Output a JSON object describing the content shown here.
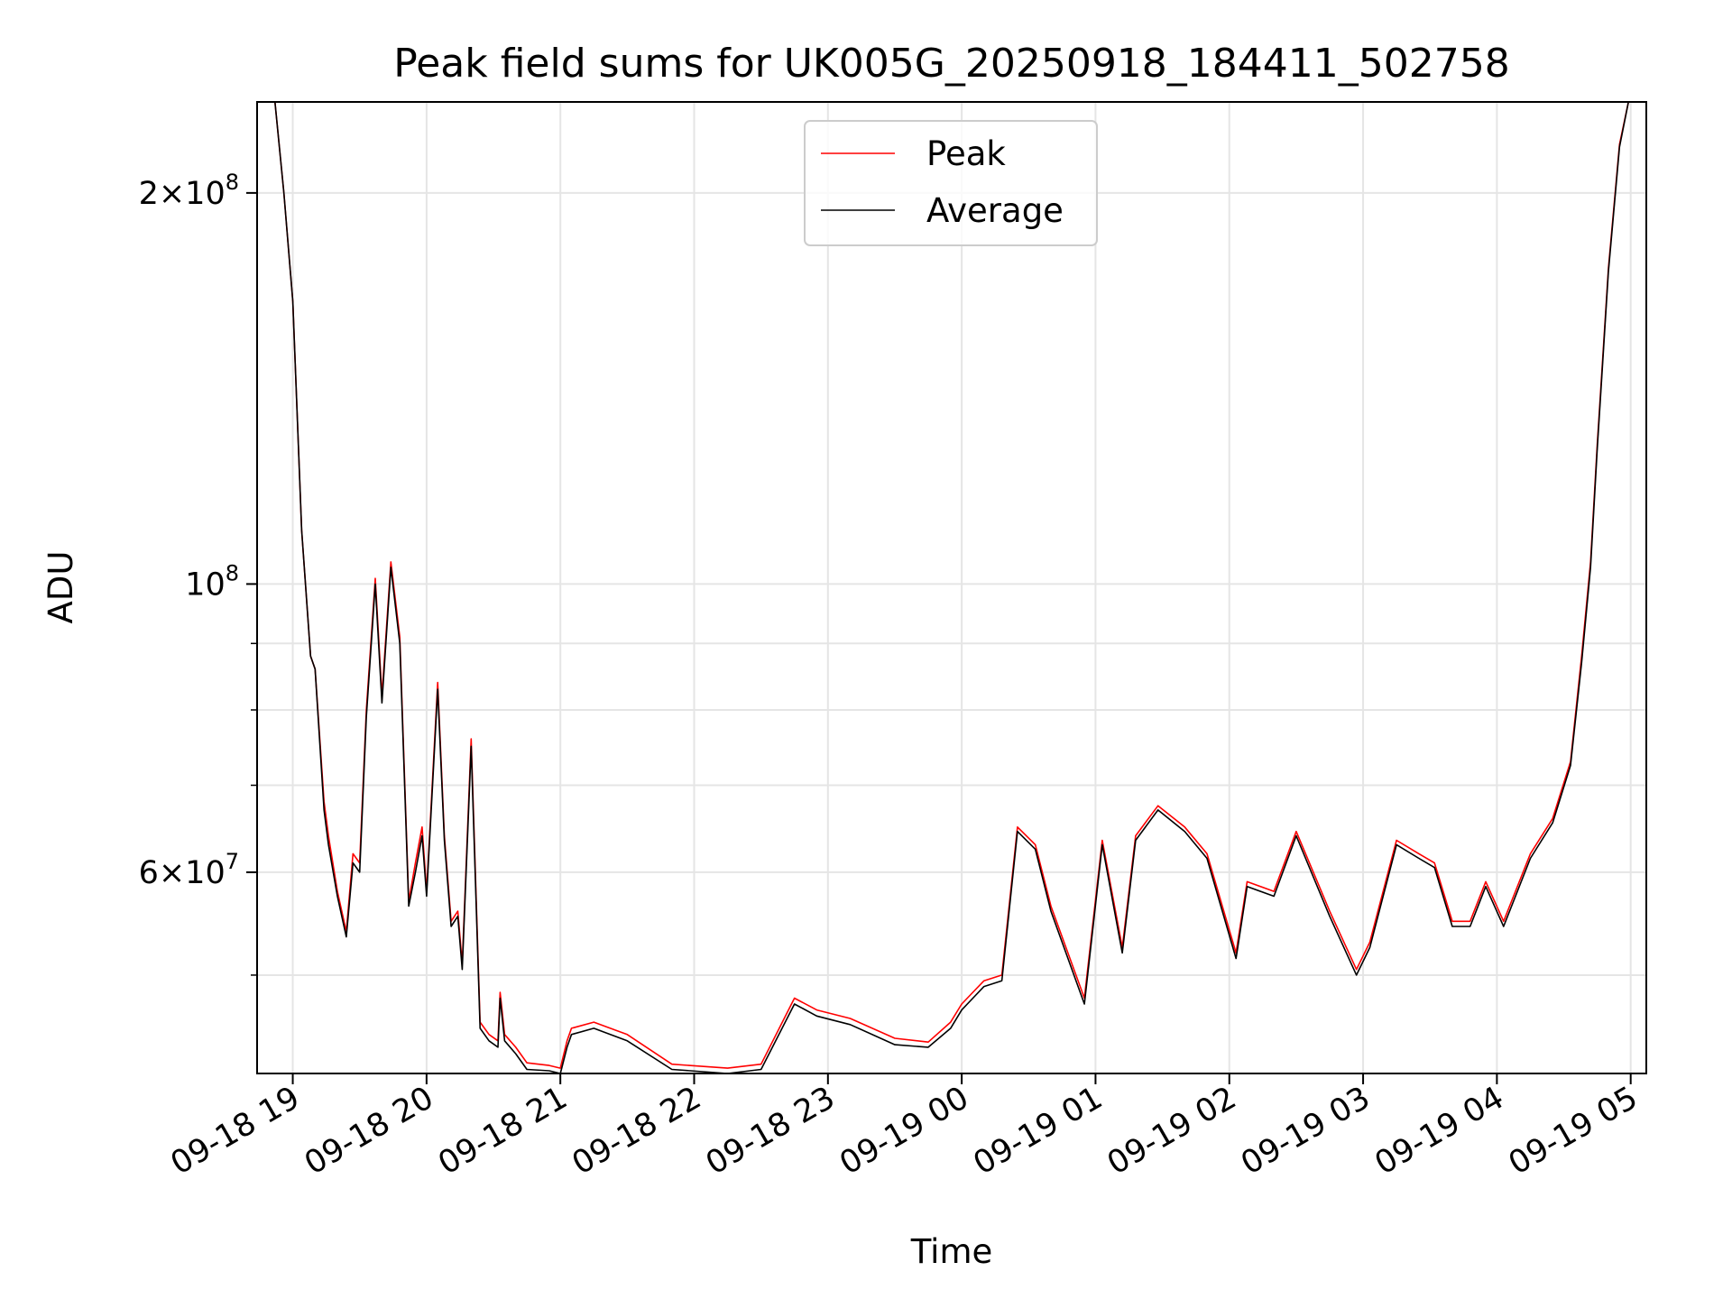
{
  "chart_data": {
    "type": "line",
    "title": "Peak field sums for UK005G_20250918_184411_502758",
    "xlabel": "Time",
    "ylabel": "ADU",
    "y_scale": "log",
    "xlim": [
      "2025-09-18 18:44",
      "2025-09-19 05:07"
    ],
    "ylim": [
      42000000,
      235000000
    ],
    "grid": true,
    "legend_position": "top-center",
    "x_ticks": [
      "09-18 19",
      "09-18 20",
      "09-18 21",
      "09-18 22",
      "09-18 23",
      "09-19 00",
      "09-19 01",
      "09-19 02",
      "09-19 03",
      "09-19 04",
      "09-19 05"
    ],
    "x_tick_times": [
      "2025-09-18 19:00",
      "2025-09-18 20:00",
      "2025-09-18 21:00",
      "2025-09-18 22:00",
      "2025-09-18 23:00",
      "2025-09-19 00:00",
      "2025-09-19 01:00",
      "2025-09-19 02:00",
      "2025-09-19 03:00",
      "2025-09-19 04:00",
      "2025-09-19 05:00"
    ],
    "y_ticks": [
      {
        "value": 200000000,
        "mantissa": "2",
        "exponent": "8"
      },
      {
        "value": 100000000,
        "mantissa": "",
        "exponent": "8"
      },
      {
        "value": 60000000,
        "mantissa": "6",
        "exponent": "7"
      }
    ],
    "y_minor_ticks": [
      50000000,
      70000000,
      80000000,
      90000000
    ],
    "series": [
      {
        "name": "Peak",
        "color": "#ff0000",
        "x": [
          "2025-09-18 18:44",
          "2025-09-18 18:52",
          "2025-09-18 18:56",
          "2025-09-18 19:00",
          "2025-09-18 19:04",
          "2025-09-18 19:08",
          "2025-09-18 19:10",
          "2025-09-18 19:14",
          "2025-09-18 19:16",
          "2025-09-18 19:20",
          "2025-09-18 19:24",
          "2025-09-18 19:27",
          "2025-09-18 19:30",
          "2025-09-18 19:33",
          "2025-09-18 19:37",
          "2025-09-18 19:40",
          "2025-09-18 19:44",
          "2025-09-18 19:48",
          "2025-09-18 19:52",
          "2025-09-18 19:55",
          "2025-09-18 19:58",
          "2025-09-18 20:00",
          "2025-09-18 20:05",
          "2025-09-18 20:08",
          "2025-09-18 20:11",
          "2025-09-18 20:14",
          "2025-09-18 20:16",
          "2025-09-18 20:20",
          "2025-09-18 20:24",
          "2025-09-18 20:28",
          "2025-09-18 20:32",
          "2025-09-18 20:33",
          "2025-09-18 20:35",
          "2025-09-18 20:40",
          "2025-09-18 20:45",
          "2025-09-18 20:55",
          "2025-09-18 21:00",
          "2025-09-18 21:03",
          "2025-09-18 21:05",
          "2025-09-18 21:15",
          "2025-09-18 21:30",
          "2025-09-18 21:50",
          "2025-09-18 22:15",
          "2025-09-18 22:30",
          "2025-09-18 22:45",
          "2025-09-18 22:55",
          "2025-09-18 23:10",
          "2025-09-18 23:30",
          "2025-09-18 23:45",
          "2025-09-18 23:55",
          "2025-09-19 00:00",
          "2025-09-19 00:05",
          "2025-09-19 00:10",
          "2025-09-19 00:18",
          "2025-09-19 00:25",
          "2025-09-19 00:33",
          "2025-09-19 00:40",
          "2025-09-19 00:55",
          "2025-09-19 01:03",
          "2025-09-19 01:12",
          "2025-09-19 01:18",
          "2025-09-19 01:28",
          "2025-09-19 01:40",
          "2025-09-19 01:50",
          "2025-09-19 02:03",
          "2025-09-19 02:08",
          "2025-09-19 02:20",
          "2025-09-19 02:30",
          "2025-09-19 02:45",
          "2025-09-19 02:57",
          "2025-09-19 03:03",
          "2025-09-19 03:15",
          "2025-09-19 03:25",
          "2025-09-19 03:32",
          "2025-09-19 03:40",
          "2025-09-19 03:48",
          "2025-09-19 03:55",
          "2025-09-19 04:03",
          "2025-09-19 04:15",
          "2025-09-19 04:25",
          "2025-09-19 04:33",
          "2025-09-19 04:38",
          "2025-09-19 04:42",
          "2025-09-19 04:45",
          "2025-09-19 04:50",
          "2025-09-19 04:55",
          "2025-09-19 04:59",
          "2025-09-19 05:05"
        ],
        "y": [
          235000000,
          235000000,
          200000000,
          165000000,
          110000000,
          88000000,
          86000000,
          68000000,
          64000000,
          58000000,
          54000000,
          62000000,
          61000000,
          80000000,
          101000000,
          82000000,
          104000000,
          91000000,
          57000000,
          61000000,
          65000000,
          58000000,
          84000000,
          64000000,
          55000000,
          56000000,
          51000000,
          76000000,
          46000000,
          45000000,
          44500000,
          48500000,
          45000000,
          44000000,
          42800000,
          42600000,
          42400000,
          44500000,
          45500000,
          46000000,
          45000000,
          42700000,
          42400000,
          42700000,
          48000000,
          47000000,
          46300000,
          44700000,
          44400000,
          46000000,
          47500000,
          48500000,
          49500000,
          50000000,
          65000000,
          63000000,
          56500000,
          48000000,
          63500000,
          52500000,
          64000000,
          67500000,
          65000000,
          62000000,
          52000000,
          59000000,
          58000000,
          64500000,
          56000000,
          50500000,
          53000000,
          63500000,
          62000000,
          61000000,
          55000000,
          55000000,
          59000000,
          55000000,
          62000000,
          66000000,
          73000000,
          88000000,
          104000000,
          128000000,
          175000000,
          218000000,
          235000000,
          235000000
        ]
      },
      {
        "name": "Average",
        "color": "#000000",
        "x": [
          "2025-09-18 18:44",
          "2025-09-18 18:52",
          "2025-09-18 18:56",
          "2025-09-18 19:00",
          "2025-09-18 19:04",
          "2025-09-18 19:08",
          "2025-09-18 19:10",
          "2025-09-18 19:14",
          "2025-09-18 19:16",
          "2025-09-18 19:20",
          "2025-09-18 19:24",
          "2025-09-18 19:27",
          "2025-09-18 19:30",
          "2025-09-18 19:33",
          "2025-09-18 19:37",
          "2025-09-18 19:40",
          "2025-09-18 19:44",
          "2025-09-18 19:48",
          "2025-09-18 19:52",
          "2025-09-18 19:55",
          "2025-09-18 19:58",
          "2025-09-18 20:00",
          "2025-09-18 20:05",
          "2025-09-18 20:08",
          "2025-09-18 20:11",
          "2025-09-18 20:14",
          "2025-09-18 20:16",
          "2025-09-18 20:20",
          "2025-09-18 20:24",
          "2025-09-18 20:28",
          "2025-09-18 20:32",
          "2025-09-18 20:33",
          "2025-09-18 20:35",
          "2025-09-18 20:40",
          "2025-09-18 20:45",
          "2025-09-18 20:55",
          "2025-09-18 21:00",
          "2025-09-18 21:03",
          "2025-09-18 21:05",
          "2025-09-18 21:15",
          "2025-09-18 21:30",
          "2025-09-18 21:50",
          "2025-09-18 22:15",
          "2025-09-18 22:30",
          "2025-09-18 22:45",
          "2025-09-18 22:55",
          "2025-09-18 23:10",
          "2025-09-18 23:30",
          "2025-09-18 23:45",
          "2025-09-18 23:55",
          "2025-09-19 00:00",
          "2025-09-19 00:05",
          "2025-09-19 00:10",
          "2025-09-19 00:18",
          "2025-09-19 00:25",
          "2025-09-19 00:33",
          "2025-09-19 00:40",
          "2025-09-19 00:55",
          "2025-09-19 01:03",
          "2025-09-19 01:12",
          "2025-09-19 01:18",
          "2025-09-19 01:28",
          "2025-09-19 01:40",
          "2025-09-19 01:50",
          "2025-09-19 02:03",
          "2025-09-19 02:08",
          "2025-09-19 02:20",
          "2025-09-19 02:30",
          "2025-09-19 02:45",
          "2025-09-19 02:57",
          "2025-09-19 03:03",
          "2025-09-19 03:15",
          "2025-09-19 03:25",
          "2025-09-19 03:32",
          "2025-09-19 03:40",
          "2025-09-19 03:48",
          "2025-09-19 03:55",
          "2025-09-19 04:03",
          "2025-09-19 04:15",
          "2025-09-19 04:25",
          "2025-09-19 04:33",
          "2025-09-19 04:38",
          "2025-09-19 04:42",
          "2025-09-19 04:45",
          "2025-09-19 04:50",
          "2025-09-19 04:55",
          "2025-09-19 04:59",
          "2025-09-19 05:05"
        ],
        "y": [
          235000000,
          235000000,
          200000000,
          165000000,
          110000000,
          88000000,
          86000000,
          67000000,
          63000000,
          57500000,
          53500000,
          61000000,
          60000000,
          79000000,
          100000000,
          81000000,
          103000000,
          90000000,
          56500000,
          60000000,
          64000000,
          57500000,
          83000000,
          63500000,
          54500000,
          55500000,
          50500000,
          75000000,
          45500000,
          44500000,
          44000000,
          48000000,
          44500000,
          43500000,
          42300000,
          42200000,
          42000000,
          44000000,
          45000000,
          45500000,
          44500000,
          42300000,
          42000000,
          42300000,
          47500000,
          46500000,
          45800000,
          44200000,
          44000000,
          45500000,
          47000000,
          48000000,
          49000000,
          49500000,
          64500000,
          62500000,
          56000000,
          47500000,
          63000000,
          52000000,
          63500000,
          67000000,
          64500000,
          61500000,
          51500000,
          58500000,
          57500000,
          64000000,
          55500000,
          50000000,
          52500000,
          63000000,
          61500000,
          60500000,
          54500000,
          54500000,
          58500000,
          54500000,
          61500000,
          65500000,
          72500000,
          87000000,
          103000000,
          127000000,
          174000000,
          217000000,
          235000000,
          235000000
        ]
      }
    ]
  }
}
